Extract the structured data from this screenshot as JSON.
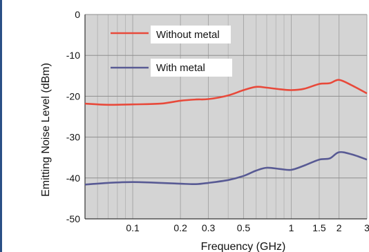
{
  "chart_data": {
    "type": "line",
    "xlabel": "Frequency (GHz)",
    "ylabel": "Emitting Noise Level (dBm)",
    "xscale": "log",
    "xlim": [
      0.05,
      3
    ],
    "ylim": [
      -50,
      0
    ],
    "x_ticks": [
      {
        "value": 0.1,
        "label": "0.1"
      },
      {
        "value": 0.2,
        "label": "0.2"
      },
      {
        "value": 0.3,
        "label": "0.3"
      },
      {
        "value": 0.5,
        "label": "0.5"
      },
      {
        "value": 1,
        "label": "1"
      },
      {
        "value": 1.5,
        "label": "1.5"
      },
      {
        "value": 2,
        "label": "2"
      },
      {
        "value": 3,
        "label": "3"
      }
    ],
    "y_ticks": [
      {
        "value": 0,
        "label": "0"
      },
      {
        "value": -10,
        "label": "-10"
      },
      {
        "value": -20,
        "label": "-20"
      },
      {
        "value": -30,
        "label": "-30"
      },
      {
        "value": -40,
        "label": "-40"
      },
      {
        "value": -50,
        "label": "-50"
      }
    ],
    "grid": true,
    "legend_position": "top-left",
    "plot_background": "#d4d4d4",
    "series": [
      {
        "name": "Without metal",
        "color": "#e8493a",
        "x": [
          0.05,
          0.07,
          0.1,
          0.15,
          0.2,
          0.25,
          0.3,
          0.4,
          0.5,
          0.6,
          0.7,
          0.85,
          1,
          1.2,
          1.5,
          1.75,
          2,
          2.4,
          3
        ],
        "y": [
          -21.8,
          -22.1,
          -22.0,
          -21.8,
          -21.1,
          -20.8,
          -20.7,
          -19.8,
          -18.5,
          -17.7,
          -17.9,
          -18.3,
          -18.5,
          -18.2,
          -17.0,
          -16.8,
          -16.0,
          -17.3,
          -19.3
        ]
      },
      {
        "name": "With metal",
        "color": "#585a94",
        "x": [
          0.05,
          0.07,
          0.1,
          0.15,
          0.2,
          0.25,
          0.3,
          0.4,
          0.5,
          0.6,
          0.7,
          0.85,
          1,
          1.2,
          1.5,
          1.75,
          2,
          2.4,
          3
        ],
        "y": [
          -41.6,
          -41.2,
          -41.0,
          -41.2,
          -41.4,
          -41.5,
          -41.2,
          -40.5,
          -39.5,
          -38.2,
          -37.5,
          -37.8,
          -38.0,
          -37.0,
          -35.5,
          -35.2,
          -33.7,
          -34.2,
          -35.5
        ]
      }
    ]
  }
}
